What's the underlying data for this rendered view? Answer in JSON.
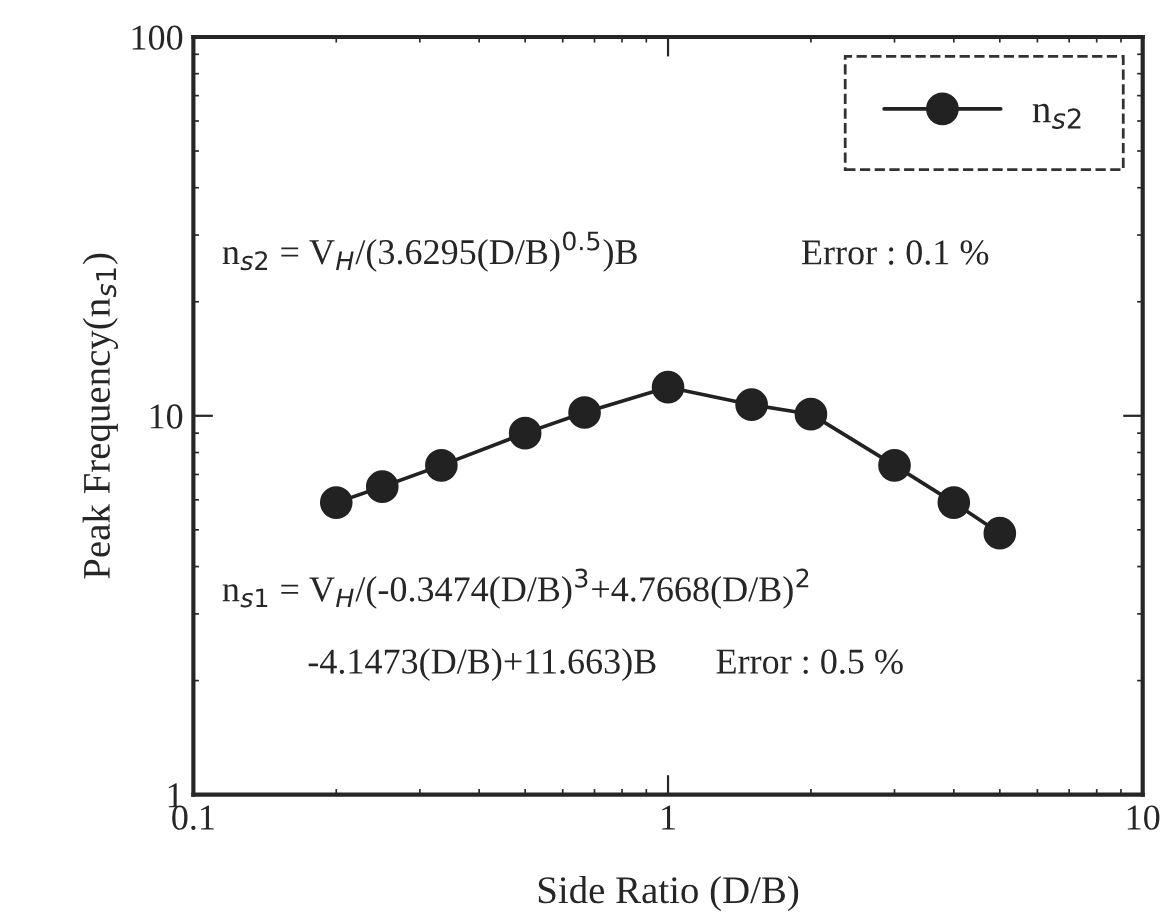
{
  "chart_data": {
    "type": "line",
    "xlabel": "Side Ratio (D/B)",
    "ylabel": "Peak Frequency(n$_{s1}$)",
    "x": [
      0.2,
      0.25,
      0.333,
      0.5,
      0.667,
      1,
      1.5,
      2,
      3,
      4,
      5
    ],
    "series": [
      {
        "name": "n$_{s2}$",
        "color": "#222222",
        "values": [
          5.9,
          6.5,
          7.4,
          9.0,
          10.2,
          11.9,
          10.7,
          10.1,
          7.4,
          5.9,
          4.9
        ]
      }
    ],
    "xlim": [
      0.1,
      10
    ],
    "ylim": [
      1,
      100
    ],
    "xticks": [
      0.1,
      1,
      10
    ],
    "yticks": [
      1,
      10,
      100
    ],
    "log": "xy",
    "grid": false,
    "legend": "top right",
    "marker": "circle",
    "line_style": "solid",
    "annotations": [
      "n$_{s2}$ = V$_{H}$/(3.6295(D/B)$^{0.5}$)B",
      "Error : 0.1 %",
      "n$_{s1}$ = V$_{H}$/(-0.3474(D/B)$^{3}$+4.7668(D/B)$^{2}$",
      "-4.1473(D/B)+11.663)B",
      "Error : 0.5 %"
    ]
  }
}
